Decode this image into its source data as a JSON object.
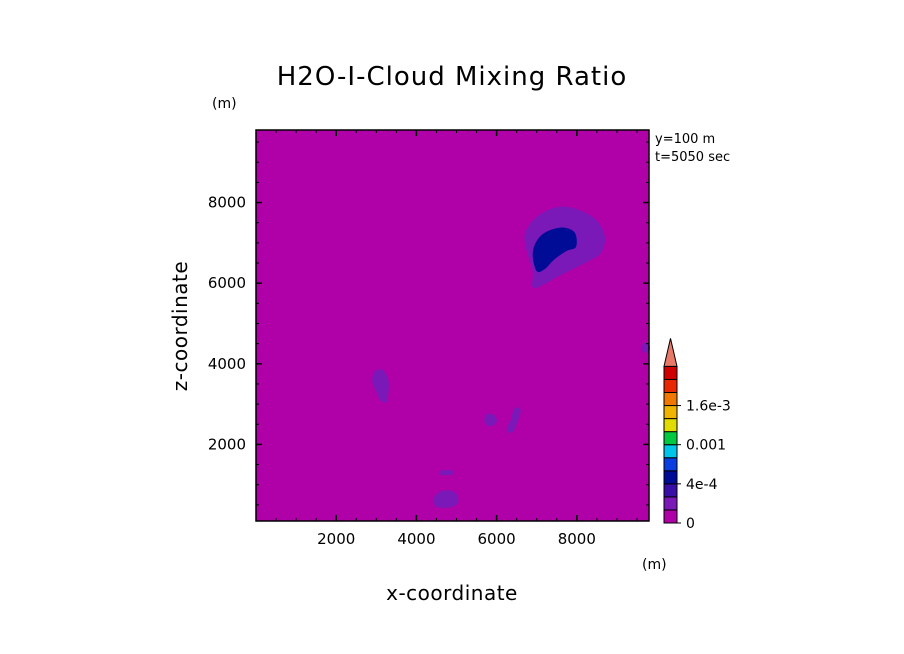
{
  "chart_data": {
    "type": "contour",
    "title": "H2O-I-Cloud Mixing Ratio",
    "xlabel": "x-coordinate",
    "ylabel": "z-coordinate",
    "x_unit": "(m)",
    "y_unit": "(m)",
    "xlim": [
      0,
      9800
    ],
    "ylim": [
      100,
      9800
    ],
    "xticks": [
      2000,
      4000,
      6000,
      8000
    ],
    "yticks": [
      2000,
      4000,
      6000,
      8000
    ],
    "info": [
      "y=100 m",
      "t=5050 sec"
    ],
    "background_level": 0,
    "colorbar": {
      "levels": [
        0,
        0.0001,
        0.0002,
        0.0004,
        0.0006,
        0.0008,
        0.001,
        0.0012,
        0.0014,
        0.0016,
        0.0018,
        0.002
      ],
      "colors": [
        "#b000a8",
        "#7a18b8",
        "#3810a8",
        "#000c96",
        "#0a3ee0",
        "#00c4e8",
        "#00c840",
        "#e0dc00",
        "#f0b400",
        "#f07800",
        "#e82800",
        "#d00000"
      ],
      "over_color": "#e87868",
      "labels": [
        {
          "value": 0,
          "text": "0"
        },
        {
          "value": 0.0004,
          "text": "4e-4"
        },
        {
          "value": 0.001,
          "text": "0.001"
        },
        {
          "value": 0.0016,
          "text": "1.6e-3"
        }
      ]
    },
    "features": [
      {
        "name": "upper-cloud-outer",
        "level": 0.0001,
        "color": "#7a18b8",
        "outline": [
          [
            6900,
            5900
          ],
          [
            6900,
            6300
          ],
          [
            6750,
            6800
          ],
          [
            6700,
            7200
          ],
          [
            6900,
            7550
          ],
          [
            7250,
            7800
          ],
          [
            7650,
            7900
          ],
          [
            8100,
            7800
          ],
          [
            8500,
            7550
          ],
          [
            8700,
            7150
          ],
          [
            8600,
            6750
          ],
          [
            8300,
            6550
          ],
          [
            7900,
            6350
          ],
          [
            7500,
            6150
          ],
          [
            7150,
            5950
          ]
        ]
      },
      {
        "name": "upper-cloud-core",
        "level": 0.0004,
        "color": "#000c96",
        "outline": [
          [
            7000,
            6300
          ],
          [
            6900,
            6700
          ],
          [
            7000,
            7050
          ],
          [
            7250,
            7280
          ],
          [
            7650,
            7380
          ],
          [
            7950,
            7250
          ],
          [
            7980,
            6900
          ],
          [
            7750,
            6800
          ],
          [
            7450,
            6600
          ],
          [
            7200,
            6350
          ]
        ]
      },
      {
        "name": "blob-mid-left",
        "level": 0.0001,
        "color": "#7a18b8",
        "outline": [
          [
            2900,
            3550
          ],
          [
            2950,
            3800
          ],
          [
            3150,
            3850
          ],
          [
            3300,
            3600
          ],
          [
            3300,
            3250
          ],
          [
            3250,
            3050
          ],
          [
            3100,
            3100
          ],
          [
            3000,
            3300
          ]
        ]
      },
      {
        "name": "blob-center-1",
        "level": 0.0001,
        "color": "#7a18b8",
        "outline": [
          [
            5700,
            2550
          ],
          [
            5750,
            2750
          ],
          [
            5950,
            2720
          ],
          [
            6000,
            2550
          ],
          [
            5850,
            2450
          ]
        ]
      },
      {
        "name": "blob-center-2",
        "level": 0.0001,
        "color": "#7a18b8",
        "outline": [
          [
            6250,
            2350
          ],
          [
            6350,
            2600
          ],
          [
            6450,
            2900
          ],
          [
            6600,
            2850
          ],
          [
            6500,
            2500
          ],
          [
            6400,
            2300
          ]
        ]
      },
      {
        "name": "blob-bottom",
        "level": 0.0001,
        "color": "#7a18b8",
        "outline": [
          [
            4450,
            500
          ],
          [
            4450,
            700
          ],
          [
            4650,
            850
          ],
          [
            4950,
            820
          ],
          [
            5050,
            600
          ],
          [
            4900,
            450
          ],
          [
            4600,
            430
          ]
        ]
      },
      {
        "name": "blob-bottom-small",
        "level": 0.0001,
        "color": "#7a18b8",
        "outline": [
          [
            4600,
            1250
          ],
          [
            4620,
            1350
          ],
          [
            4900,
            1350
          ],
          [
            4900,
            1250
          ]
        ]
      },
      {
        "name": "blob-right-edge",
        "level": 0.0001,
        "color": "#7a18b8",
        "outline": [
          [
            9650,
            4300
          ],
          [
            9650,
            4500
          ],
          [
            9800,
            4500
          ],
          [
            9800,
            4300
          ]
        ]
      }
    ]
  }
}
